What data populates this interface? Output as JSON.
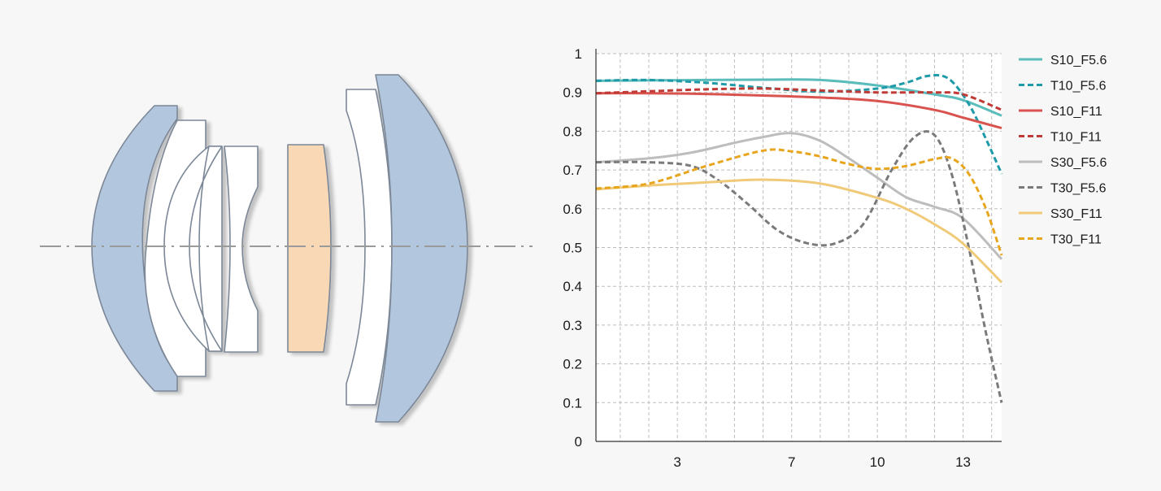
{
  "chart_data": {
    "type": "line",
    "title": "",
    "xlabel": "",
    "ylabel": "",
    "xlim": [
      0.15,
      14.35
    ],
    "ylim": [
      0,
      1
    ],
    "x_ticks": [
      3,
      7,
      10,
      13
    ],
    "y_ticks": [
      0,
      0.1,
      0.2,
      0.3,
      0.4,
      0.5,
      0.6,
      0.7,
      0.8,
      0.9,
      1
    ],
    "y_tick_labels": [
      "0",
      "0.1",
      "0.2",
      "0.3",
      "0.4",
      "0.5",
      "0.6",
      "0.7",
      "0.8",
      "0.9",
      "1"
    ],
    "grid": true,
    "legend_position": "right",
    "series": [
      {
        "name": "S10_F5.6",
        "color": "#5bbcbc",
        "dash": false,
        "x": [
          0.15,
          2,
          4,
          6,
          8,
          10,
          12,
          13,
          14.35
        ],
        "y": [
          0.93,
          0.931,
          0.932,
          0.933,
          0.932,
          0.918,
          0.895,
          0.88,
          0.84
        ]
      },
      {
        "name": "T10_F5.6",
        "color": "#1f9aa8",
        "dash": true,
        "x": [
          0.15,
          2,
          4,
          6,
          8,
          10,
          11,
          11.8,
          12.5,
          13.2,
          13.8,
          14.35
        ],
        "y": [
          0.93,
          0.932,
          0.925,
          0.912,
          0.902,
          0.91,
          0.925,
          0.943,
          0.935,
          0.87,
          0.78,
          0.69
        ]
      },
      {
        "name": "S10_F11",
        "color": "#d9534f",
        "dash": false,
        "x": [
          0.15,
          2,
          4,
          6,
          8,
          10,
          12,
          13,
          14.35
        ],
        "y": [
          0.898,
          0.898,
          0.896,
          0.892,
          0.887,
          0.878,
          0.855,
          0.835,
          0.808
        ]
      },
      {
        "name": "T10_F11",
        "color": "#c03b36",
        "dash": true,
        "x": [
          0.15,
          2,
          4,
          6,
          8,
          10,
          12,
          13,
          14.35
        ],
        "y": [
          0.898,
          0.903,
          0.908,
          0.91,
          0.905,
          0.9,
          0.9,
          0.895,
          0.855
        ]
      },
      {
        "name": "S30_F5.6",
        "color": "#bdbdbd",
        "dash": false,
        "x": [
          0.15,
          2,
          3.5,
          5,
          6,
          7,
          8,
          9,
          10,
          11,
          12,
          13,
          14.35
        ],
        "y": [
          0.72,
          0.73,
          0.745,
          0.77,
          0.785,
          0.795,
          0.775,
          0.73,
          0.68,
          0.63,
          0.605,
          0.575,
          0.47
        ]
      },
      {
        "name": "T30_F5.6",
        "color": "#7a7a7a",
        "dash": true,
        "x": [
          0.15,
          2,
          3.5,
          4.5,
          5.5,
          6.5,
          7.5,
          8.5,
          9.5,
          10.5,
          11.3,
          12,
          12.6,
          13.2,
          13.8,
          14.35
        ],
        "y": [
          0.72,
          0.72,
          0.71,
          0.67,
          0.61,
          0.545,
          0.512,
          0.51,
          0.56,
          0.7,
          0.785,
          0.79,
          0.69,
          0.5,
          0.28,
          0.1
        ]
      },
      {
        "name": "S30_F11",
        "color": "#f0ca78",
        "dash": false,
        "x": [
          0.15,
          2,
          4,
          6,
          8,
          10,
          11,
          12,
          13,
          14.35
        ],
        "y": [
          0.65,
          0.66,
          0.668,
          0.675,
          0.665,
          0.628,
          0.6,
          0.56,
          0.51,
          0.41
        ]
      },
      {
        "name": "T30_F11",
        "color": "#e8a51e",
        "dash": true,
        "x": [
          0.15,
          2,
          4,
          6,
          7,
          8,
          9,
          10,
          11,
          12,
          12.6,
          13.2,
          13.8,
          14.35
        ],
        "y": [
          0.652,
          0.665,
          0.71,
          0.75,
          0.748,
          0.735,
          0.715,
          0.703,
          0.71,
          0.728,
          0.73,
          0.69,
          0.6,
          0.48
        ]
      }
    ]
  },
  "diagram": {
    "axis_color": "#9a9a9a",
    "colors": {
      "blue_element": "#b2c6dd",
      "orange_element": "#f9d9b5",
      "white_element": "#ffffff",
      "outline": "#7b8797"
    }
  }
}
